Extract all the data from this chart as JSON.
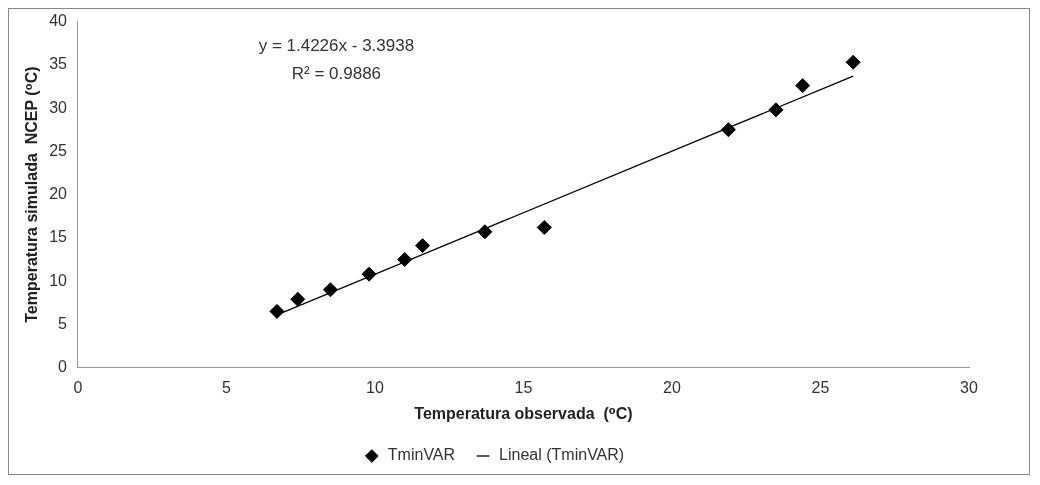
{
  "chart_data": {
    "type": "scatter",
    "xlabel": "Temperatura observada  (⁰C)",
    "ylabel": "Temperatura simulada  NCEP (⁰C)",
    "annotations": [
      "y = 1.4226x - 3.3938",
      "R² = 0.9886"
    ],
    "series": [
      {
        "name": "TminVAR",
        "color": "#000000",
        "marker": "diamond",
        "x": [
          6.7,
          7.4,
          8.5,
          9.8,
          11.0,
          11.6,
          13.7,
          15.7,
          21.9,
          23.5,
          24.4,
          26.1
        ],
        "values": [
          6.5,
          7.9,
          9.0,
          10.8,
          12.5,
          14.1,
          15.7,
          16.2,
          27.5,
          29.8,
          32.6,
          35.3
        ]
      },
      {
        "name": "Lineal (TminVAR)",
        "type": "line",
        "color": "#000000",
        "marker": "none",
        "line_style": "solid",
        "x": [
          6.7,
          26.1
        ],
        "values": [
          6.1,
          33.7
        ]
      }
    ],
    "xlim": [
      0,
      30
    ],
    "xticks": [
      0,
      5,
      10,
      15,
      20,
      25,
      30
    ],
    "ylim": [
      0,
      40
    ],
    "yticks": [
      0,
      5,
      10,
      15,
      20,
      25,
      30,
      35,
      40
    ],
    "grid": false,
    "legend": "bottom"
  }
}
